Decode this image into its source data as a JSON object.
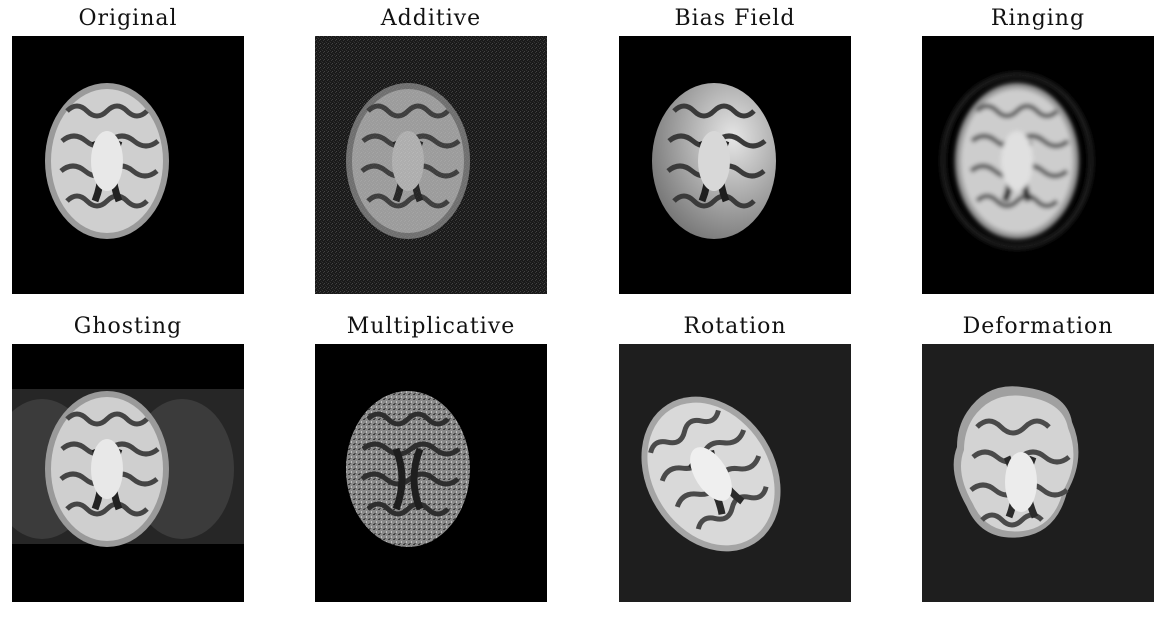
{
  "panels": [
    {
      "title": "Original",
      "background": "#000000",
      "variant": "original"
    },
    {
      "title": "Additive",
      "background": "#1a1a1a",
      "variant": "additive"
    },
    {
      "title": "Bias Field",
      "background": "#000000",
      "variant": "bias"
    },
    {
      "title": "Ringing",
      "background": "#000000",
      "variant": "ringing"
    },
    {
      "title": "Ghosting",
      "background": "#000000",
      "variant": "ghosting"
    },
    {
      "title": "Multiplicative",
      "background": "#000000",
      "variant": "multiplicative"
    },
    {
      "title": "Rotation",
      "background": "#1e1e1e",
      "variant": "rotation"
    },
    {
      "title": "Deformation",
      "background": "#1e1e1e",
      "variant": "deformation"
    }
  ]
}
